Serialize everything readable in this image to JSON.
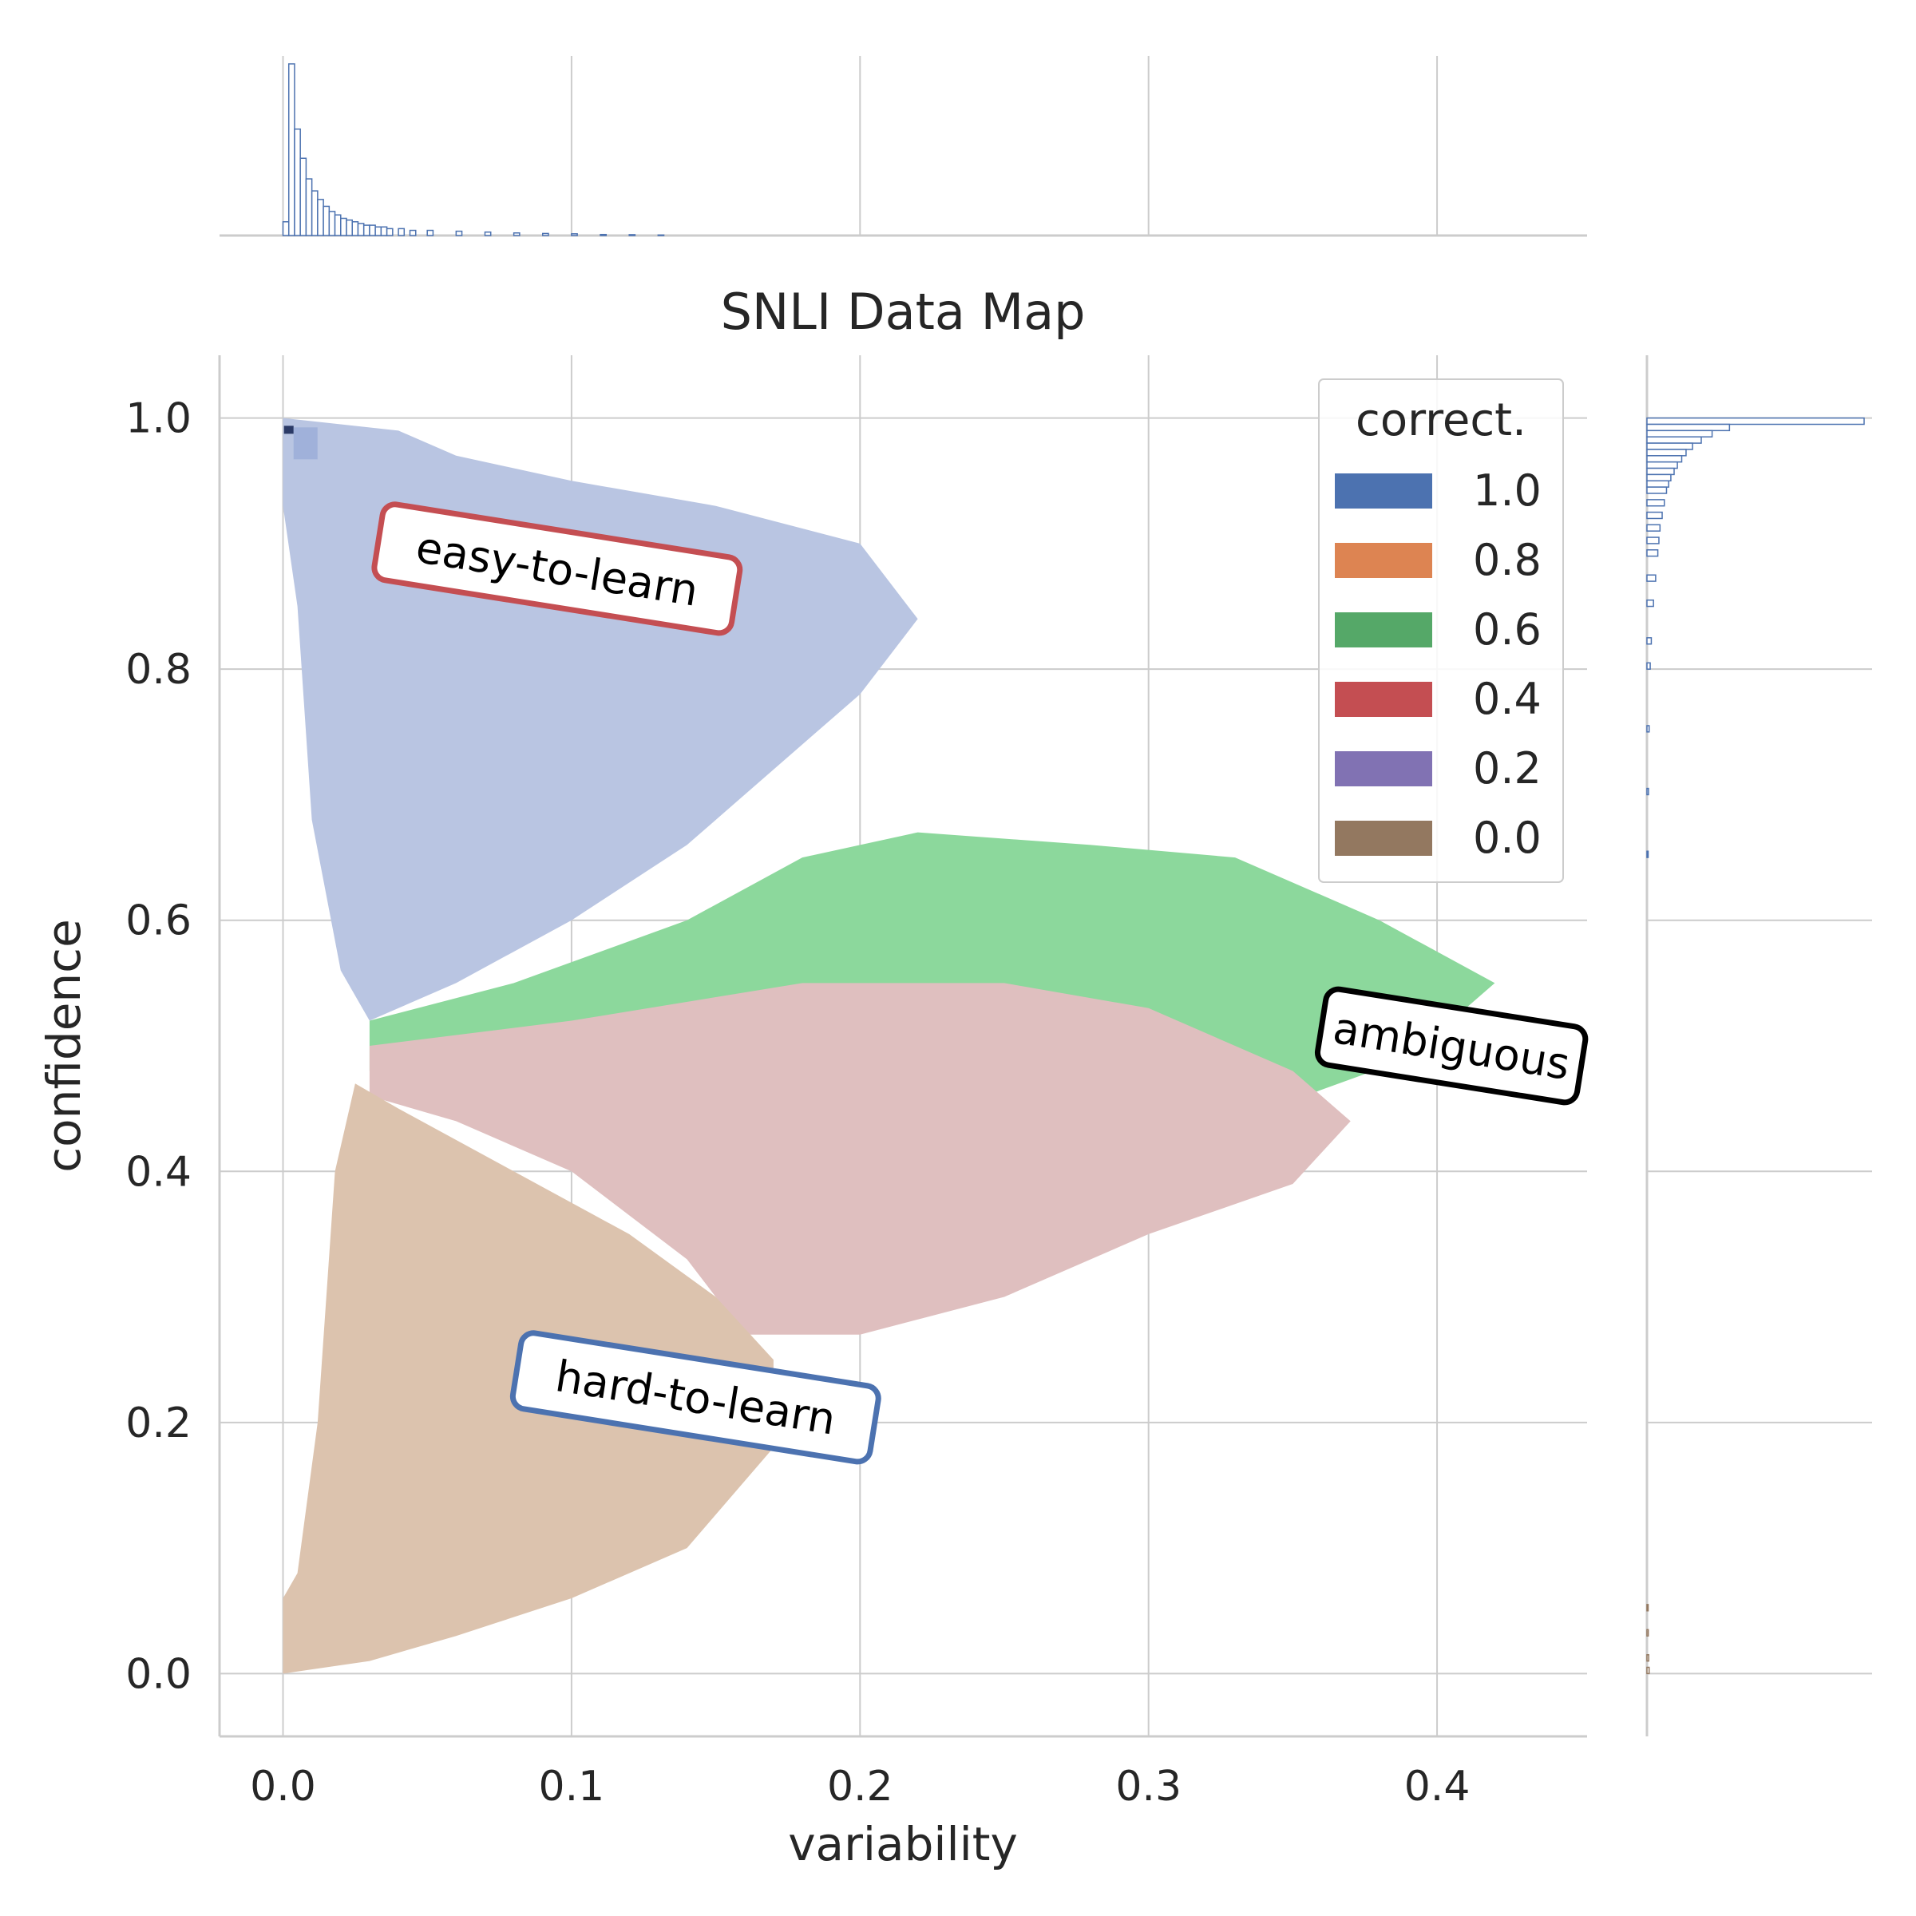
{
  "chart_data": {
    "type": "heatmap",
    "title": "SNLI Data Map",
    "xlabel": "variability",
    "ylabel": "confidence",
    "xlim": [
      -0.022,
      0.452
    ],
    "ylim": [
      -0.05,
      1.05
    ],
    "xticks": [
      0.0,
      0.1,
      0.2,
      0.3,
      0.4
    ],
    "yticks": [
      0.0,
      0.2,
      0.4,
      0.6,
      0.8,
      1.0
    ],
    "xtick_labels": [
      "0.0",
      "0.1",
      "0.2",
      "0.3",
      "0.4"
    ],
    "ytick_labels": [
      "0.0",
      "0.2",
      "0.4",
      "0.6",
      "0.8",
      "1.0"
    ],
    "grid": true,
    "legend": {
      "title": "correct.",
      "placement": "top-right",
      "entries": [
        {
          "label": "1.0",
          "color": "#4c72b0"
        },
        {
          "label": "0.8",
          "color": "#dd8452"
        },
        {
          "label": "0.6",
          "color": "#55a868"
        },
        {
          "label": "0.4",
          "color": "#c44e52"
        },
        {
          "label": "0.2",
          "color": "#8172b3"
        },
        {
          "label": "0.0",
          "color": "#937860"
        }
      ]
    },
    "regions": [
      {
        "correctness": "1.0",
        "color": "#b9c5e2",
        "polygon": [
          [
            0.0,
            1.0
          ],
          [
            0.04,
            0.99
          ],
          [
            0.06,
            0.97
          ],
          [
            0.1,
            0.95
          ],
          [
            0.15,
            0.93
          ],
          [
            0.2,
            0.9
          ],
          [
            0.22,
            0.84
          ],
          [
            0.2,
            0.78
          ],
          [
            0.18,
            0.74
          ],
          [
            0.14,
            0.66
          ],
          [
            0.1,
            0.6
          ],
          [
            0.06,
            0.55
          ],
          [
            0.03,
            0.52
          ],
          [
            0.02,
            0.56
          ],
          [
            0.01,
            0.68
          ],
          [
            0.005,
            0.85
          ],
          [
            0.0,
            0.93
          ]
        ]
      },
      {
        "correctness": "0.6",
        "color": "#8cd89c",
        "polygon": [
          [
            0.03,
            0.52
          ],
          [
            0.08,
            0.55
          ],
          [
            0.14,
            0.6
          ],
          [
            0.18,
            0.65
          ],
          [
            0.22,
            0.67
          ],
          [
            0.28,
            0.66
          ],
          [
            0.33,
            0.65
          ],
          [
            0.38,
            0.6
          ],
          [
            0.42,
            0.55
          ],
          [
            0.39,
            0.49
          ],
          [
            0.33,
            0.44
          ],
          [
            0.27,
            0.43
          ],
          [
            0.2,
            0.45
          ],
          [
            0.14,
            0.46
          ],
          [
            0.08,
            0.48
          ],
          [
            0.03,
            0.48
          ]
        ]
      },
      {
        "correctness": "0.4",
        "color": "#dfbfbf",
        "polygon": [
          [
            0.03,
            0.5
          ],
          [
            0.1,
            0.52
          ],
          [
            0.18,
            0.55
          ],
          [
            0.25,
            0.55
          ],
          [
            0.3,
            0.53
          ],
          [
            0.35,
            0.48
          ],
          [
            0.37,
            0.44
          ],
          [
            0.35,
            0.39
          ],
          [
            0.3,
            0.35
          ],
          [
            0.25,
            0.3
          ],
          [
            0.2,
            0.27
          ],
          [
            0.16,
            0.27
          ],
          [
            0.14,
            0.33
          ],
          [
            0.1,
            0.4
          ],
          [
            0.06,
            0.44
          ],
          [
            0.03,
            0.46
          ]
        ]
      },
      {
        "correctness": "0.0",
        "color": "#dcc3ae",
        "polygon": [
          [
            0.0,
            0.0
          ],
          [
            0.03,
            0.01
          ],
          [
            0.06,
            0.03
          ],
          [
            0.1,
            0.06
          ],
          [
            0.14,
            0.1
          ],
          [
            0.17,
            0.18
          ],
          [
            0.17,
            0.25
          ],
          [
            0.15,
            0.3
          ],
          [
            0.12,
            0.35
          ],
          [
            0.08,
            0.4
          ],
          [
            0.04,
            0.45
          ],
          [
            0.025,
            0.47
          ],
          [
            0.018,
            0.4
          ],
          [
            0.012,
            0.2
          ],
          [
            0.005,
            0.08
          ],
          [
            0.0,
            0.06
          ]
        ]
      }
    ],
    "hotspot": {
      "x": 0.002,
      "y": 0.99,
      "color": "#2b3a66"
    },
    "annotations": [
      {
        "text": "easy-to-learn",
        "x": 0.095,
        "y": 0.88,
        "rotation": 9,
        "border": "#c44e52"
      },
      {
        "text": "ambiguous",
        "x": 0.405,
        "y": 0.5,
        "rotation": 9,
        "border": "#000000"
      },
      {
        "text": "hard-to-learn",
        "x": 0.143,
        "y": 0.22,
        "rotation": 9,
        "border": "#4c72b0"
      }
    ],
    "marginal_x": {
      "type": "histogram",
      "color": "#4c72b0",
      "bin_width": 0.002,
      "bins": [
        [
          0.0,
          8
        ],
        [
          0.002,
          100
        ],
        [
          0.004,
          62
        ],
        [
          0.006,
          45
        ],
        [
          0.008,
          33
        ],
        [
          0.01,
          26
        ],
        [
          0.012,
          21
        ],
        [
          0.014,
          17
        ],
        [
          0.016,
          14
        ],
        [
          0.018,
          12
        ],
        [
          0.02,
          10
        ],
        [
          0.022,
          9
        ],
        [
          0.024,
          8
        ],
        [
          0.026,
          7
        ],
        [
          0.028,
          6
        ],
        [
          0.03,
          6
        ],
        [
          0.032,
          5
        ],
        [
          0.034,
          5
        ],
        [
          0.036,
          4
        ],
        [
          0.04,
          4
        ],
        [
          0.044,
          3
        ],
        [
          0.05,
          3
        ],
        [
          0.06,
          2.5
        ],
        [
          0.07,
          2
        ],
        [
          0.08,
          1.5
        ],
        [
          0.09,
          1.2
        ],
        [
          0.1,
          1
        ],
        [
          0.11,
          0.6
        ],
        [
          0.12,
          0.5
        ],
        [
          0.13,
          0.3
        ]
      ]
    },
    "marginal_y": {
      "type": "histogram",
      "color": "#4c72b0",
      "bin_width": 0.005,
      "bins": [
        [
          0.995,
          100
        ],
        [
          0.99,
          38
        ],
        [
          0.985,
          30
        ],
        [
          0.98,
          25
        ],
        [
          0.975,
          21
        ],
        [
          0.97,
          18
        ],
        [
          0.965,
          16
        ],
        [
          0.96,
          14
        ],
        [
          0.955,
          12.5
        ],
        [
          0.95,
          11
        ],
        [
          0.945,
          10
        ],
        [
          0.94,
          9
        ],
        [
          0.93,
          8
        ],
        [
          0.92,
          7
        ],
        [
          0.91,
          6
        ],
        [
          0.9,
          5.5
        ],
        [
          0.89,
          5
        ],
        [
          0.87,
          4
        ],
        [
          0.85,
          3
        ],
        [
          0.82,
          2
        ],
        [
          0.8,
          1.5
        ],
        [
          0.75,
          1
        ],
        [
          0.7,
          0.7
        ],
        [
          0.65,
          0.5
        ],
        [
          0.05,
          0.5
        ],
        [
          0.03,
          0.6
        ],
        [
          0.01,
          0.8
        ],
        [
          0.0,
          1
        ]
      ]
    }
  }
}
